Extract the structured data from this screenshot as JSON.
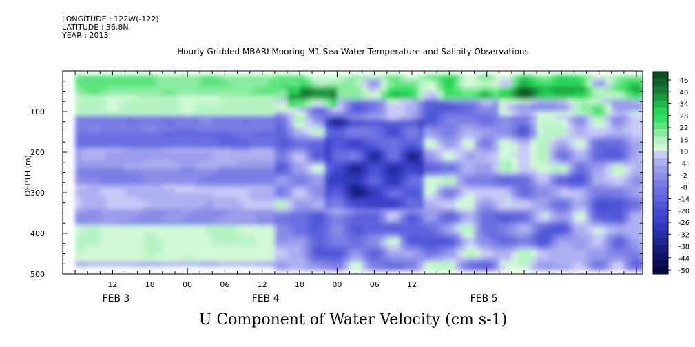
{
  "meta": {
    "longitude": "LONGITUDE : 122W(-122)",
    "latitude": "LATITUDE : 36.8N",
    "year": "YEAR : 2013"
  },
  "title": "Hourly Gridded MBARI Mooring M1 Sea Water Temperature and Salinity Observations",
  "variable_title": "U Component of Water Velocity (cm s-1)",
  "chart_data": {
    "type": "heatmap",
    "title": "Hourly Gridded MBARI Mooring M1 Sea Water Temperature and Salinity Observations",
    "xlabel": "",
    "ylabel": "DEPTH (m)",
    "colorbar_label": "U Component of Water Velocity (cm s-1)",
    "y_reversed": true,
    "ylim": [
      0,
      500
    ],
    "y_ticks": [
      100,
      200,
      300,
      400,
      500
    ],
    "y_tick_labels": [
      "100",
      "200",
      "300",
      "400",
      "500"
    ],
    "x_unit": "hours",
    "xlim_hours": [
      -20,
      73
    ],
    "x_ticks_hours": [
      -12,
      -6,
      0,
      6,
      12,
      18,
      24,
      30,
      36,
      42,
      48,
      54,
      60
    ],
    "x_tick_labels": [
      "12",
      "18",
      "00",
      "06",
      "12",
      "18",
      "00",
      "06",
      "12"
    ],
    "x_tick_label_hours": [
      -12,
      -6,
      0,
      6,
      12,
      18,
      24,
      30,
      36
    ],
    "x_date_labels": [
      {
        "text": "FEB  3",
        "hour": -12
      },
      {
        "text": "FEB  4",
        "hour": 12
      },
      {
        "text": "FEB  5",
        "hour": 47
      }
    ],
    "x_tick_labels_full": [
      {
        "text": "12",
        "hour": -12
      },
      {
        "text": "18",
        "hour": -6
      },
      {
        "text": "00",
        "hour": 0
      },
      {
        "text": "06",
        "hour": 6
      },
      {
        "text": "12",
        "hour": 12
      },
      {
        "text": "18",
        "hour": 18
      },
      {
        "text": "00",
        "hour": 24
      },
      {
        "text": "06",
        "hour": 30
      },
      {
        "text": "12",
        "hour": 36
      }
    ],
    "colorbar_levels": [
      "46",
      "40",
      "34",
      "28",
      "22",
      "16",
      "10",
      "4",
      "-2",
      "-8",
      "-14",
      "-20",
      "-26",
      "-32",
      "-38",
      "-44",
      "-50"
    ],
    "colorbar_colors": [
      "#0b4d1c",
      "#11622a",
      "#157a34",
      "#1a9a3e",
      "#20b84b",
      "#27d455",
      "#34e064",
      "#5ce57e",
      "#8aeca0",
      "#b5f4c2",
      "#d0f8d6",
      "#c7c9f7",
      "#adb0f0",
      "#9a9cec",
      "#8a8ce8",
      "#7a7de4",
      "#6b6fe1",
      "#5d63dd",
      "#4f56d8",
      "#444bd3",
      "#3a40c9",
      "#3137ba",
      "#282ea6",
      "#1f2590",
      "#171c79",
      "#101464",
      "#0a0d50",
      "#060839"
    ],
    "data_extent": {
      "x_hours": [
        -18,
        72
      ],
      "depth_m": [
        10,
        480
      ]
    },
    "pattern": [
      {
        "depth_m": [
          15,
          65
        ],
        "hour_range": [
          -18,
          18
        ],
        "value": 22
      },
      {
        "depth_m": [
          65,
          110
        ],
        "hour_range": [
          -18,
          14
        ],
        "value": 16
      },
      {
        "depth_m": [
          110,
          150
        ],
        "hour_range": [
          -18,
          14
        ],
        "value": -5
      },
      {
        "depth_m": [
          150,
          190
        ],
        "hour_range": [
          -18,
          14
        ],
        "value": -10
      },
      {
        "depth_m": [
          190,
          240
        ],
        "hour_range": [
          -18,
          14
        ],
        "value": 4
      },
      {
        "depth_m": [
          240,
          280
        ],
        "hour_range": [
          -18,
          14
        ],
        "value": -4
      },
      {
        "depth_m": [
          280,
          340
        ],
        "hour_range": [
          -18,
          14
        ],
        "value": 6
      },
      {
        "depth_m": [
          340,
          380
        ],
        "hour_range": [
          -18,
          14
        ],
        "value": 0
      },
      {
        "depth_m": [
          380,
          475
        ],
        "hour_range": [
          -18,
          14
        ],
        "value": 14
      },
      {
        "depth_m": [
          150,
          320
        ],
        "hour_range": [
          24,
          36
        ],
        "value": -26
      },
      {
        "depth_m": [
          60,
          100
        ],
        "hour_range": [
          54,
          72
        ],
        "value": 28
      }
    ]
  }
}
